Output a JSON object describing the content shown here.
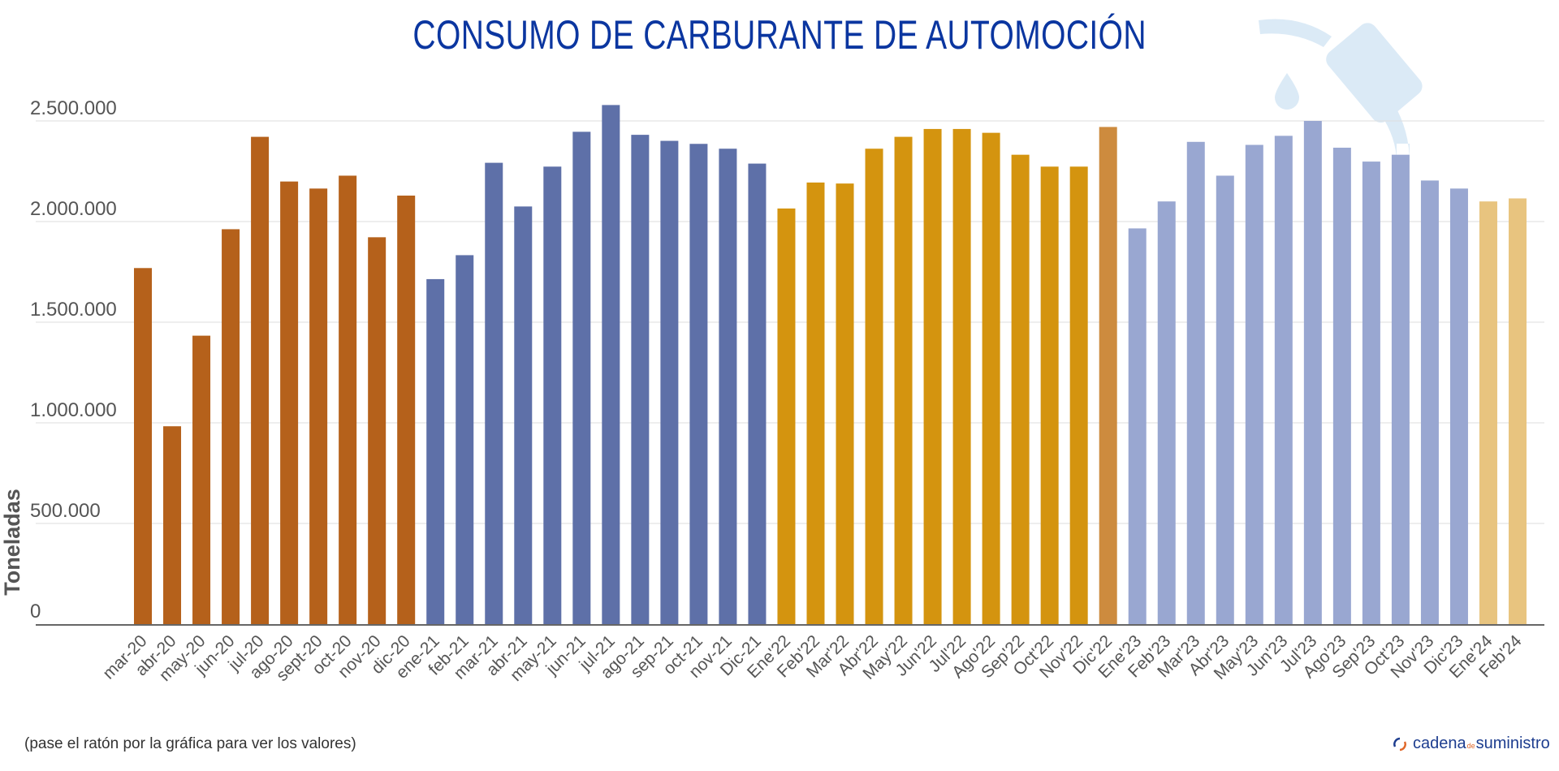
{
  "chart_data": {
    "type": "bar",
    "title": "CONSUMO DE CARBURANTE DE AUTOMOCIÓN",
    "ylabel": "Toneladas",
    "xlabel": "",
    "ylim": [
      0,
      2500000
    ],
    "yticks": [
      0,
      500000,
      1000000,
      1500000,
      2000000,
      2500000
    ],
    "ytick_labels": [
      "0",
      "500.000",
      "1.000.000",
      "1.500.000",
      "2.000.000",
      "2.500.000"
    ],
    "grid": true,
    "categories": [
      "mar-20",
      "abr-20",
      "may-20",
      "jun-20",
      "jul-20",
      "ago-20",
      "sept-20",
      "oct-20",
      "nov-20",
      "dic-20",
      "ene-21",
      "feb-21",
      "mar-21",
      "abr-21",
      "may-21",
      "jun-21",
      "jul-21",
      "ago-21",
      "sep-21",
      "oct-21",
      "nov-21",
      "Dic-21",
      "Ene'22",
      "Feb'22",
      "Mar'22",
      "Abr'22",
      "May'22",
      "Jun'22",
      "Jul'22",
      "Ago'22",
      "Sep'22",
      "Oct'22",
      "Nov'22",
      "Dic'22",
      "Ene'23",
      "Feb'23",
      "Mar'23",
      "Abr'23",
      "May'23",
      "Jun'23",
      "Jul'23",
      "Ago'23",
      "Sep'23",
      "Oct'23",
      "Nov'23",
      "Dic'23",
      "Ene'24",
      "Feb'24"
    ],
    "values": [
      1769000,
      983000,
      1433000,
      1962000,
      2421000,
      2199000,
      2164000,
      2228000,
      1922000,
      2129000,
      1714000,
      1833000,
      2292000,
      2075000,
      2273000,
      2446000,
      2579000,
      2431000,
      2401000,
      2386000,
      2362000,
      2288000,
      2065000,
      2194000,
      2189000,
      2362000,
      2421000,
      2460000,
      2460000,
      2441000,
      2332000,
      2273000,
      2273000,
      2470000,
      1966000,
      2100000,
      2396000,
      2228000,
      2381000,
      2426000,
      2500000,
      2367000,
      2298000,
      2332000,
      2204000,
      2164000,
      2100000,
      2115000
    ],
    "bar_colors": [
      "#b5611b",
      "#b5611b",
      "#b5611b",
      "#b5611b",
      "#b5611b",
      "#b5611b",
      "#b5611b",
      "#b5611b",
      "#b5611b",
      "#b5611b",
      "#5e70a8",
      "#5e70a8",
      "#5e70a8",
      "#5e70a8",
      "#5e70a8",
      "#5e70a8",
      "#5e70a8",
      "#5e70a8",
      "#5e70a8",
      "#5e70a8",
      "#5e70a8",
      "#5e70a8",
      "#d4940f",
      "#d4940f",
      "#d4940f",
      "#d4940f",
      "#d4940f",
      "#d4940f",
      "#d4940f",
      "#d4940f",
      "#d4940f",
      "#d4940f",
      "#d4940f",
      "#cd8b3e",
      "#99a7d1",
      "#99a7d1",
      "#99a7d1",
      "#99a7d1",
      "#99a7d1",
      "#99a7d1",
      "#99a7d1",
      "#99a7d1",
      "#99a7d1",
      "#99a7d1",
      "#99a7d1",
      "#99a7d1",
      "#e8c47f",
      "#e8c47f"
    ]
  },
  "colors": {
    "title": "#0b36a0",
    "watermark": "#dbeaf6"
  },
  "watermark_icon": "fuel-pump-nozzle-icon",
  "footer": {
    "note": "(pase el ratón por la gráfica para ver los valores)",
    "logo_main": "cadena",
    "logo_small": "de",
    "logo_end": "suministro"
  }
}
